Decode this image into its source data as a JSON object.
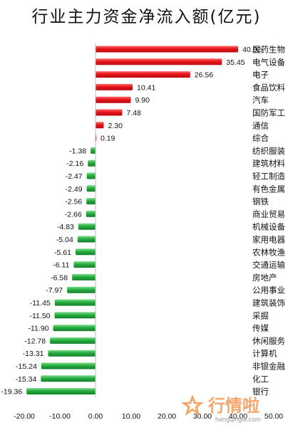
{
  "chart_data": {
    "type": "bar",
    "orientation": "horizontal",
    "title": "行业主力资金净流入额(亿元)",
    "xlabel": "",
    "ylabel": "",
    "xlim": [
      -20,
      50
    ],
    "x_ticks": [
      "-20.00",
      "-10.00",
      "0.00",
      "10.00",
      "20.00",
      "30.00",
      "40.00",
      "50.00"
    ],
    "categories": [
      "医药生物",
      "电气设备",
      "电子",
      "食品饮料",
      "汽车",
      "国防军工",
      "通信",
      "综合",
      "纺织服装",
      "建筑材料",
      "轻工制造",
      "有色金属",
      "钢铁",
      "商业贸易",
      "机械设备",
      "家用电器",
      "农林牧渔",
      "交通运输",
      "房地产",
      "公用事业",
      "建筑装饰",
      "采掘",
      "传媒",
      "休闲服务",
      "计算机",
      "非银金融",
      "化工",
      "银行"
    ],
    "values": [
      40.02,
      35.45,
      26.56,
      10.41,
      9.9,
      7.48,
      2.3,
      0.19,
      -1.38,
      -2.16,
      -2.47,
      -2.49,
      -2.56,
      -2.66,
      -4.83,
      -5.04,
      -5.61,
      -6.11,
      -6.58,
      -7.97,
      -11.45,
      -11.5,
      -11.9,
      -12.78,
      -13.31,
      -15.24,
      -15.34,
      -19.36
    ],
    "value_labels": [
      "40.02",
      "35.45",
      "26.56",
      "10.41",
      "9.90",
      "7.48",
      "2.30",
      "0.19",
      "-1.38",
      "-2.16",
      "-2.47",
      "-2.49",
      "-2.56",
      "-2.66",
      "-4.83",
      "-5.04",
      "-5.61",
      "-6.11",
      "-6.58",
      "-7.97",
      "-11.45",
      "-11.50",
      "-11.90",
      "-12.78",
      "-13.31",
      "-15.24",
      "-15.34",
      "-19.36"
    ],
    "positive_color": "#e8141b",
    "negative_color": "#27ad3f",
    "grid": false,
    "legend": "none"
  },
  "watermark": {
    "brand": "行情啦",
    "url": "hangqingla.com",
    "color": "#f28a3a"
  }
}
